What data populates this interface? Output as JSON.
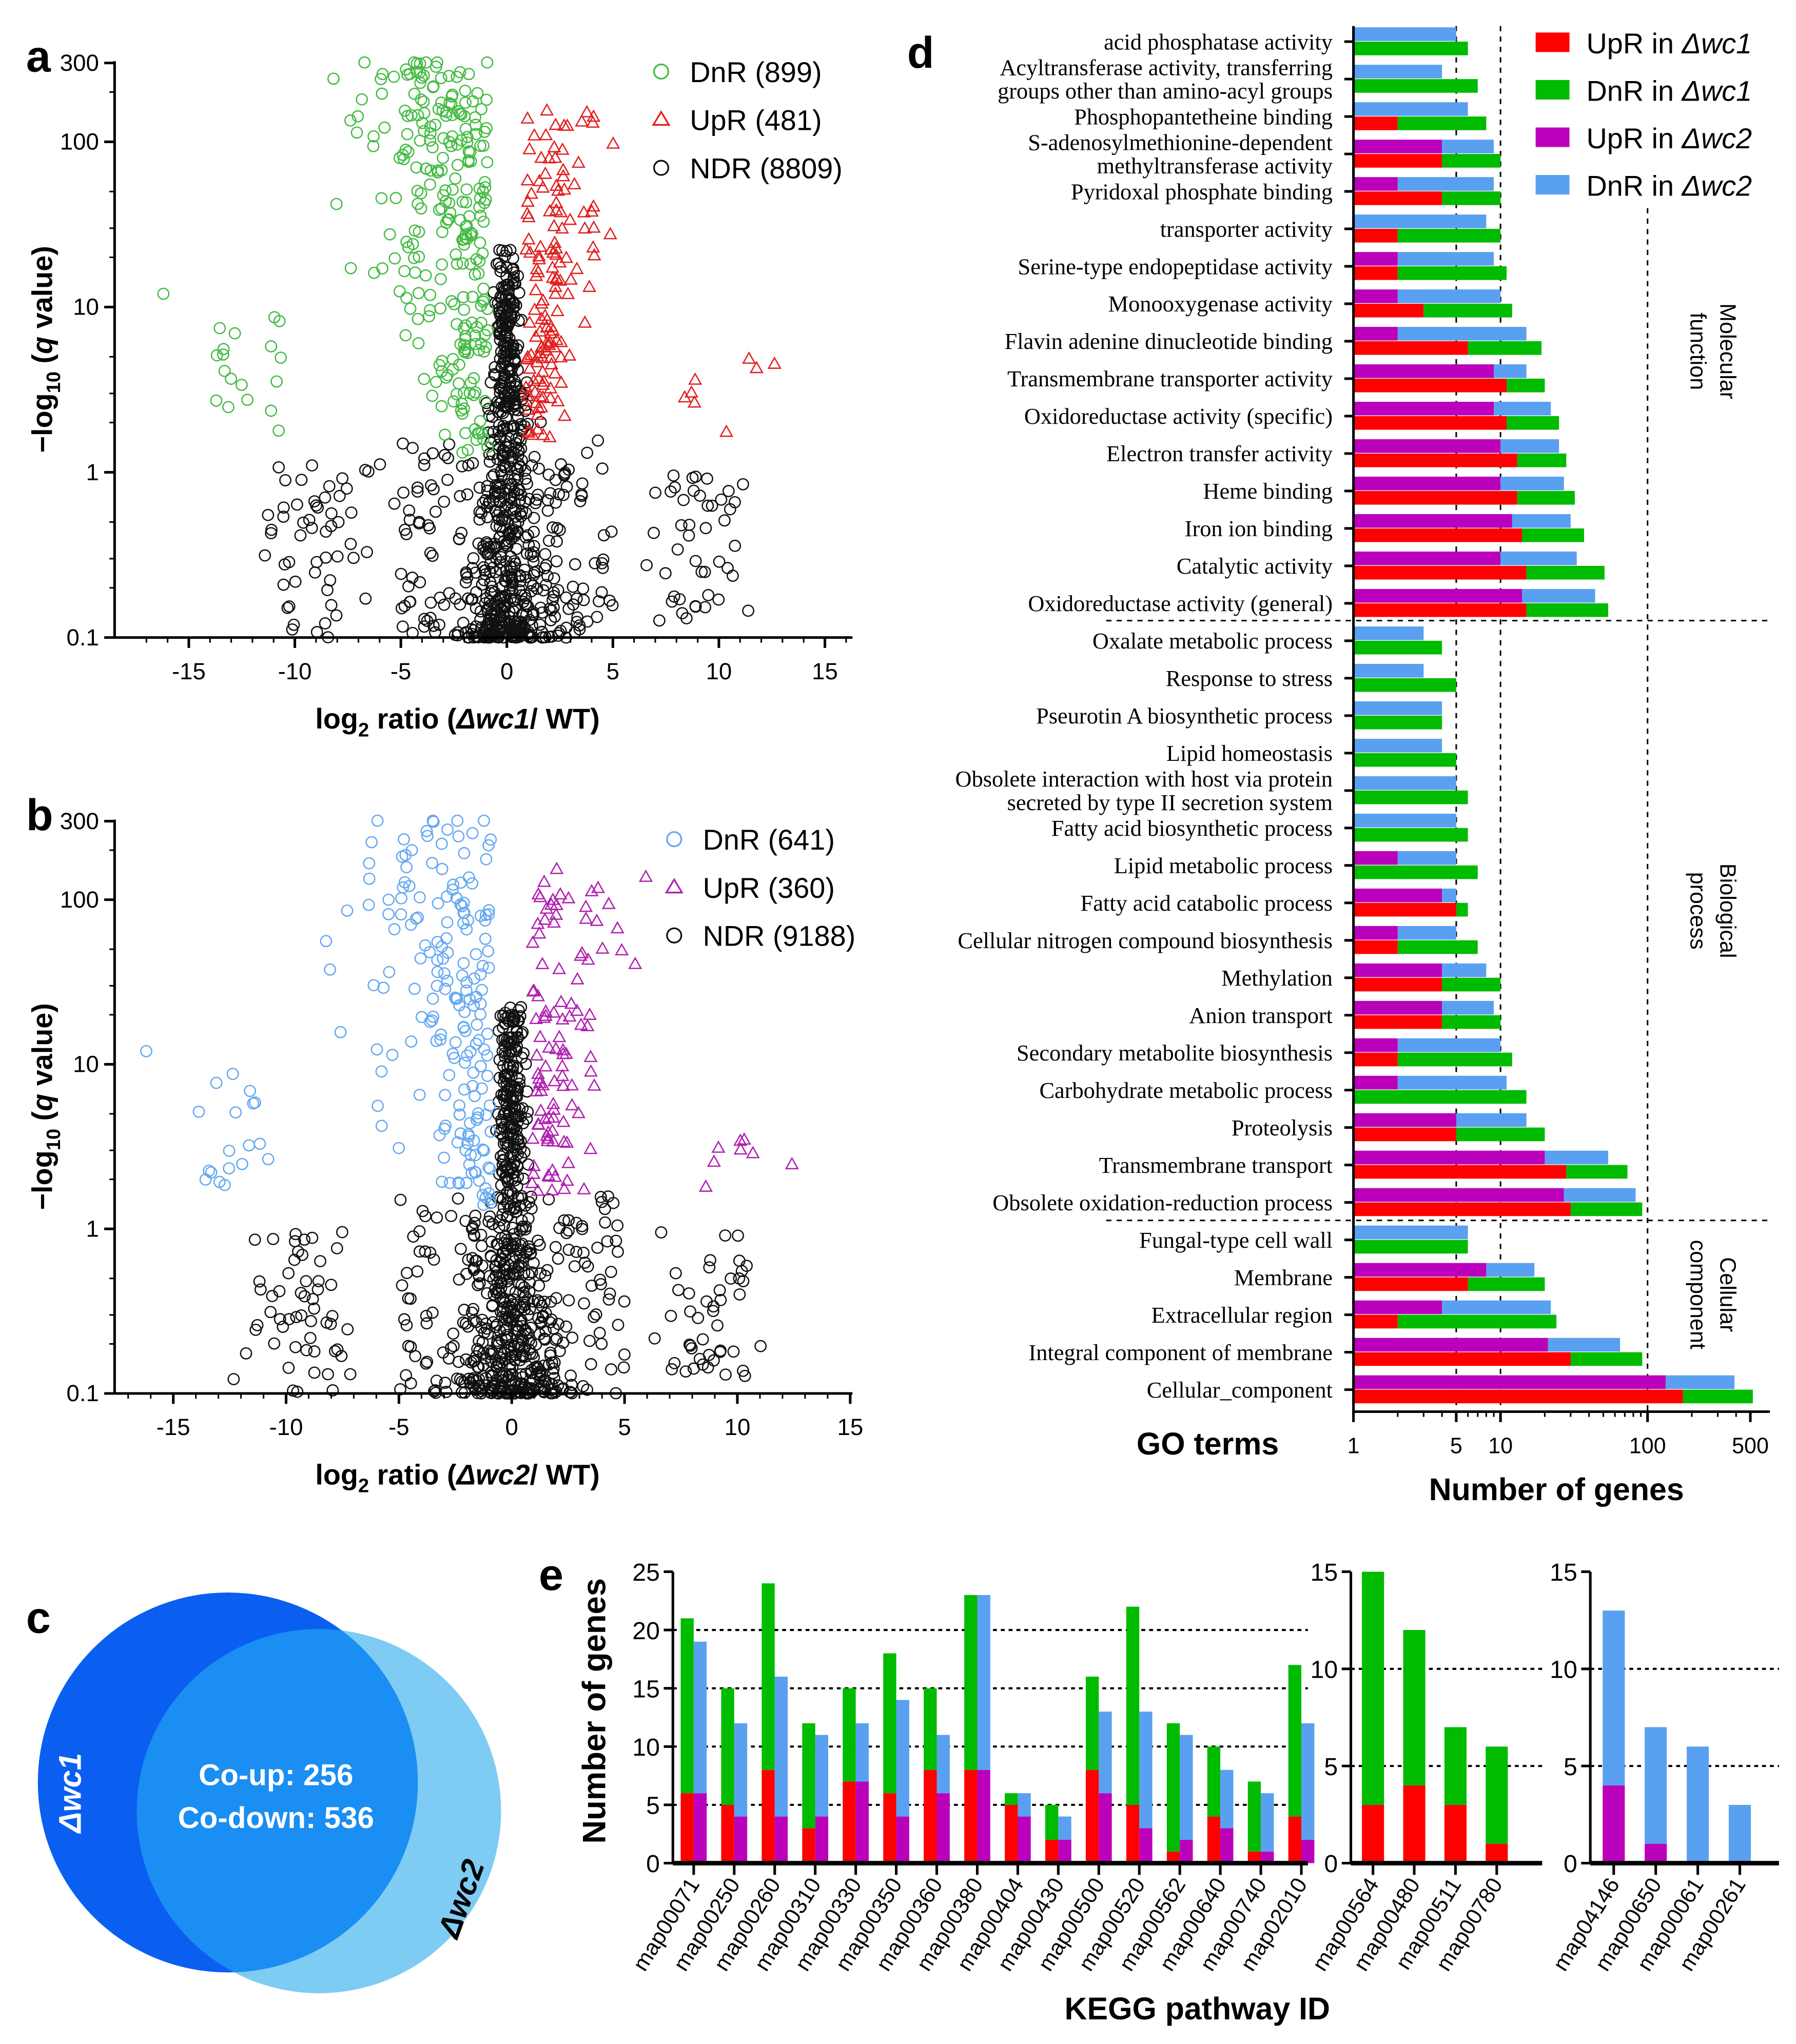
{
  "colors": {
    "wc1_up": "#ff0000",
    "wc1_dn": "#00bb00",
    "wc2_up": "#bb00bb",
    "wc2_dn": "#5aa0f0",
    "volcano_a_dn": "#44bb44",
    "volcano_a_up": "#e02020",
    "volcano_b_dn": "#66a8f0",
    "volcano_b_up": "#b020b0",
    "ndr": "#111111",
    "venn_wc1": "#0a5ff0",
    "venn_wc2": "#7ecbf4",
    "venn_overlap": "#1a8ef2"
  },
  "chart_data": [
    {
      "panel": "a",
      "type": "scatter",
      "xlabel": {
        "pre": "log",
        "sub": "2",
        "mid": " ratio (",
        "strain": "Δwc1",
        "post": "/ WT)"
      },
      "ylabel": {
        "pre": "−log",
        "sub": "10",
        "mid": " (",
        "ital": "q",
        "post": " value)"
      },
      "xlim": [
        -18.5,
        16.3
      ],
      "ylim": [
        0.1,
        300
      ],
      "yscale": "log",
      "xticks": [
        "-15",
        "-10",
        "-5",
        "0",
        "5",
        "10",
        "15"
      ],
      "xtick_values": [
        -15,
        -10,
        -5,
        0,
        5,
        10,
        15
      ],
      "yticks": [
        "0.1",
        "1",
        "10",
        "100",
        "300"
      ],
      "ytick_values": [
        0.1,
        1,
        10,
        100,
        300
      ],
      "legend": [
        {
          "label": "DnR (899)",
          "group": "DnR",
          "count": 899,
          "marker": "circle"
        },
        {
          "label": "UpR (481)",
          "group": "UpR",
          "count": 481,
          "marker": "triangle"
        },
        {
          "label": "NDR (8809)",
          "group": "NDR",
          "count": 8809,
          "marker": "circle"
        }
      ]
    },
    {
      "panel": "b",
      "type": "scatter",
      "xlabel": {
        "pre": "log",
        "sub": "2",
        "mid": " ratio (",
        "strain": "Δwc2",
        "post": "/ WT)"
      },
      "ylabel": {
        "pre": "−log",
        "sub": "10",
        "mid": " (",
        "ital": "q",
        "post": " value)"
      },
      "xlim": [
        -17.6,
        15.1
      ],
      "ylim": [
        0.1,
        300
      ],
      "yscale": "log",
      "xticks": [
        "-15",
        "-10",
        "-5",
        "0",
        "5",
        "10",
        "15"
      ],
      "xtick_values": [
        -15,
        -10,
        -5,
        0,
        5,
        10,
        15
      ],
      "yticks": [
        "0.1",
        "1",
        "10",
        "100",
        "300"
      ],
      "ytick_values": [
        0.1,
        1,
        10,
        100,
        300
      ],
      "legend": [
        {
          "label": "DnR (641)",
          "group": "DnR",
          "count": 641,
          "marker": "circle"
        },
        {
          "label": "UpR (360)",
          "group": "UpR",
          "count": 360,
          "marker": "triangle"
        },
        {
          "label": "NDR (9188)",
          "group": "NDR",
          "count": 9188,
          "marker": "circle"
        }
      ]
    },
    {
      "panel": "c",
      "type": "venn",
      "sets": [
        "Δwc1",
        "Δwc2"
      ],
      "overlap": {
        "co_up": "Co-up: 256",
        "co_down": "Co-down: 536",
        "co_up_count": 256,
        "co_down_count": 536
      }
    },
    {
      "panel": "d",
      "type": "bar",
      "orientation": "horizontal",
      "stacked": true,
      "xscale": "log",
      "xlabel": "Number of genes",
      "ylabel": "GO terms",
      "xlim": [
        1,
        600
      ],
      "xticks": [
        "1",
        "5",
        "10",
        "100",
        "500"
      ],
      "xtick_values": [
        1,
        5,
        10,
        100,
        500
      ],
      "legend": [
        {
          "pre": "UpR in ",
          "strain": "Δwc1",
          "key": "wc1_up"
        },
        {
          "pre": "DnR in ",
          "strain": "Δwc1",
          "key": "wc1_dn"
        },
        {
          "pre": "UpR in ",
          "strain": "Δwc2",
          "key": "wc2_up"
        },
        {
          "pre": "DnR in ",
          "strain": "Δwc2",
          "key": "wc2_dn"
        }
      ],
      "legend_position": "top-right",
      "categories": [
        {
          "name": "Molecular function",
          "lines": [
            "Molecular",
            "function"
          ]
        },
        {
          "name": "Biological process",
          "lines": [
            "Biological",
            "process"
          ]
        },
        {
          "name": "Cellular component",
          "lines": [
            "Cellular",
            "component"
          ]
        }
      ],
      "terms": [
        {
          "label": [
            "acid phosphatase activity"
          ],
          "cat": 0,
          "wc1_up": 0,
          "wc1_dn": 6,
          "wc2_up": 0,
          "wc2_dn": 5
        },
        {
          "label": [
            "Acyltransferase activity, transferring",
            "groups other than amino-acyl groups"
          ],
          "cat": 0,
          "wc1_up": 0,
          "wc1_dn": 7,
          "wc2_up": 0,
          "wc2_dn": 4
        },
        {
          "label": [
            "Phosphopantetheine binding"
          ],
          "cat": 0,
          "wc1_up": 2,
          "wc1_dn": 6,
          "wc2_up": 0,
          "wc2_dn": 6
        },
        {
          "label": [
            "S-adenosylmethionine-dependent",
            "methyltransferase activity"
          ],
          "cat": 0,
          "wc1_up": 4,
          "wc1_dn": 6,
          "wc2_up": 4,
          "wc2_dn": 5
        },
        {
          "label": [
            "Pyridoxal phosphate binding"
          ],
          "cat": 0,
          "wc1_up": 4,
          "wc1_dn": 6,
          "wc2_up": 2,
          "wc2_dn": 7
        },
        {
          "label": [
            "transporter activity"
          ],
          "cat": 0,
          "wc1_up": 2,
          "wc1_dn": 8,
          "wc2_up": 0,
          "wc2_dn": 8
        },
        {
          "label": [
            "Serine-type endopeptidase activity"
          ],
          "cat": 0,
          "wc1_up": 2,
          "wc1_dn": 9,
          "wc2_up": 2,
          "wc2_dn": 7
        },
        {
          "label": [
            "Monooxygenase activity"
          ],
          "cat": 0,
          "wc1_up": 3,
          "wc1_dn": 9,
          "wc2_up": 2,
          "wc2_dn": 8
        },
        {
          "label": [
            "Flavin adenine dinucleotide binding"
          ],
          "cat": 0,
          "wc1_up": 6,
          "wc1_dn": 13,
          "wc2_up": 2,
          "wc2_dn": 13
        },
        {
          "label": [
            "Transmembrane transporter activity"
          ],
          "cat": 0,
          "wc1_up": 11,
          "wc1_dn": 9,
          "wc2_up": 9,
          "wc2_dn": 6
        },
        {
          "label": [
            "Oxidoreductase activity (specific)"
          ],
          "cat": 0,
          "wc1_up": 11,
          "wc1_dn": 14,
          "wc2_up": 9,
          "wc2_dn": 13
        },
        {
          "label": [
            "Electron transfer activity"
          ],
          "cat": 0,
          "wc1_up": 13,
          "wc1_dn": 15,
          "wc2_up": 10,
          "wc2_dn": 15
        },
        {
          "label": [
            "Heme binding"
          ],
          "cat": 0,
          "wc1_up": 13,
          "wc1_dn": 19,
          "wc2_up": 10,
          "wc2_dn": 17
        },
        {
          "label": [
            "Iron ion binding"
          ],
          "cat": 0,
          "wc1_up": 14,
          "wc1_dn": 23,
          "wc2_up": 12,
          "wc2_dn": 18
        },
        {
          "label": [
            "Catalytic activity"
          ],
          "cat": 0,
          "wc1_up": 15,
          "wc1_dn": 36,
          "wc2_up": 10,
          "wc2_dn": 23
        },
        {
          "label": [
            "Oxidoreductase activity (general)"
          ],
          "cat": 0,
          "wc1_up": 15,
          "wc1_dn": 39,
          "wc2_up": 14,
          "wc2_dn": 30
        },
        {
          "label": [
            "Oxalate metabolic process"
          ],
          "cat": 1,
          "wc1_up": 0,
          "wc1_dn": 4,
          "wc2_up": 0,
          "wc2_dn": 3
        },
        {
          "label": [
            "Response to stress"
          ],
          "cat": 1,
          "wc1_up": 0,
          "wc1_dn": 5,
          "wc2_up": 0,
          "wc2_dn": 3
        },
        {
          "label": [
            "Pseurotin A biosynthetic process"
          ],
          "cat": 1,
          "wc1_up": 0,
          "wc1_dn": 4,
          "wc2_up": 0,
          "wc2_dn": 4
        },
        {
          "label": [
            "Lipid homeostasis"
          ],
          "cat": 1,
          "wc1_up": 0,
          "wc1_dn": 5,
          "wc2_up": 0,
          "wc2_dn": 4
        },
        {
          "label": [
            "Obsolete interaction with host via protein",
            "secreted by type II secretion system"
          ],
          "cat": 1,
          "wc1_up": 0,
          "wc1_dn": 6,
          "wc2_up": 0,
          "wc2_dn": 5
        },
        {
          "label": [
            "Fatty acid biosynthetic process"
          ],
          "cat": 1,
          "wc1_up": 0,
          "wc1_dn": 6,
          "wc2_up": 0,
          "wc2_dn": 5
        },
        {
          "label": [
            "Lipid metabolic process"
          ],
          "cat": 1,
          "wc1_up": 0,
          "wc1_dn": 7,
          "wc2_up": 2,
          "wc2_dn": 3
        },
        {
          "label": [
            "Fatty acid catabolic process"
          ],
          "cat": 1,
          "wc1_up": 5,
          "wc1_dn": 1,
          "wc2_up": 4,
          "wc2_dn": 1
        },
        {
          "label": [
            "Cellular nitrogen compound biosynthesis"
          ],
          "cat": 1,
          "wc1_up": 2,
          "wc1_dn": 5,
          "wc2_up": 2,
          "wc2_dn": 3
        },
        {
          "label": [
            "Methylation"
          ],
          "cat": 1,
          "wc1_up": 4,
          "wc1_dn": 6,
          "wc2_up": 4,
          "wc2_dn": 4
        },
        {
          "label": [
            "Anion transport"
          ],
          "cat": 1,
          "wc1_up": 4,
          "wc1_dn": 6,
          "wc2_up": 4,
          "wc2_dn": 5
        },
        {
          "label": [
            "Secondary metabolite biosynthesis"
          ],
          "cat": 1,
          "wc1_up": 2,
          "wc1_dn": 10,
          "wc2_up": 2,
          "wc2_dn": 8
        },
        {
          "label": [
            "Carbohydrate metabolic process"
          ],
          "cat": 1,
          "wc1_up": 0,
          "wc1_dn": 15,
          "wc2_up": 2,
          "wc2_dn": 9
        },
        {
          "label": [
            "Proteolysis"
          ],
          "cat": 1,
          "wc1_up": 5,
          "wc1_dn": 15,
          "wc2_up": 5,
          "wc2_dn": 10
        },
        {
          "label": [
            "Transmembrane transport"
          ],
          "cat": 1,
          "wc1_up": 28,
          "wc1_dn": 45,
          "wc2_up": 20,
          "wc2_dn": 34
        },
        {
          "label": [
            "Obsolete oxidation-reduction process"
          ],
          "cat": 1,
          "wc1_up": 30,
          "wc1_dn": 62,
          "wc2_up": 27,
          "wc2_dn": 56
        },
        {
          "label": [
            "Fungal-type cell wall"
          ],
          "cat": 2,
          "wc1_up": 0,
          "wc1_dn": 6,
          "wc2_up": 0,
          "wc2_dn": 6
        },
        {
          "label": [
            "Membrane"
          ],
          "cat": 2,
          "wc1_up": 6,
          "wc1_dn": 14,
          "wc2_up": 8,
          "wc2_dn": 9
        },
        {
          "label": [
            "Extracellular region"
          ],
          "cat": 2,
          "wc1_up": 2,
          "wc1_dn": 22,
          "wc2_up": 4,
          "wc2_dn": 18
        },
        {
          "label": [
            "Integral component of membrane"
          ],
          "cat": 2,
          "wc1_up": 30,
          "wc1_dn": 62,
          "wc2_up": 21,
          "wc2_dn": 44
        },
        {
          "label": [
            "Cellular_component"
          ],
          "cat": 2,
          "wc1_up": 174,
          "wc1_dn": 346,
          "wc2_up": 133,
          "wc2_dn": 257
        }
      ]
    },
    {
      "panel": "e",
      "type": "bar",
      "stacked": true,
      "xlabel": "KEGG pathway ID",
      "ylabel": "Number of genes",
      "subplots": [
        {
          "ylim": [
            0,
            25
          ],
          "yticks": [
            "0",
            "5",
            "10",
            "15",
            "20",
            "25"
          ],
          "ytick_values": [
            0,
            5,
            10,
            15,
            20,
            25
          ],
          "categories": [
            "map00071",
            "map00250",
            "map00260",
            "map00310",
            "map00330",
            "map00350",
            "map00360",
            "map00380",
            "map00404",
            "map00430",
            "map00500",
            "map00520",
            "map00562",
            "map00640",
            "map00740",
            "map02010"
          ],
          "wc1_up": [
            6,
            5,
            8,
            3,
            7,
            6,
            8,
            8,
            5,
            2,
            8,
            5,
            1,
            4,
            1,
            4
          ],
          "wc1_dn": [
            15,
            10,
            16,
            9,
            8,
            12,
            7,
            15,
            1,
            3,
            8,
            17,
            11,
            6,
            6,
            13
          ],
          "wc2_up": [
            6,
            4,
            4,
            4,
            7,
            4,
            6,
            8,
            4,
            2,
            6,
            3,
            2,
            3,
            1,
            2
          ],
          "wc2_dn": [
            13,
            8,
            12,
            7,
            5,
            10,
            5,
            15,
            2,
            2,
            7,
            10,
            9,
            5,
            5,
            10
          ]
        },
        {
          "ylim": [
            0,
            15
          ],
          "yticks": [
            "0",
            "5",
            "10",
            "15"
          ],
          "ytick_values": [
            0,
            5,
            10,
            15
          ],
          "categories": [
            "map00564",
            "map00480",
            "map00511",
            "map00780"
          ],
          "wc1_up": [
            3,
            4,
            3,
            1
          ],
          "wc1_dn": [
            12,
            8,
            4,
            5
          ]
        },
        {
          "ylim": [
            0,
            15
          ],
          "yticks": [
            "0",
            "5",
            "10",
            "15"
          ],
          "ytick_values": [
            0,
            5,
            10,
            15
          ],
          "categories": [
            "map04146",
            "map00650",
            "map00061",
            "map00261"
          ],
          "wc2_up": [
            4,
            1,
            0,
            0
          ],
          "wc2_dn": [
            9,
            6,
            6,
            3
          ]
        }
      ]
    }
  ],
  "panel_labels": [
    "a",
    "b",
    "c",
    "d",
    "e"
  ]
}
